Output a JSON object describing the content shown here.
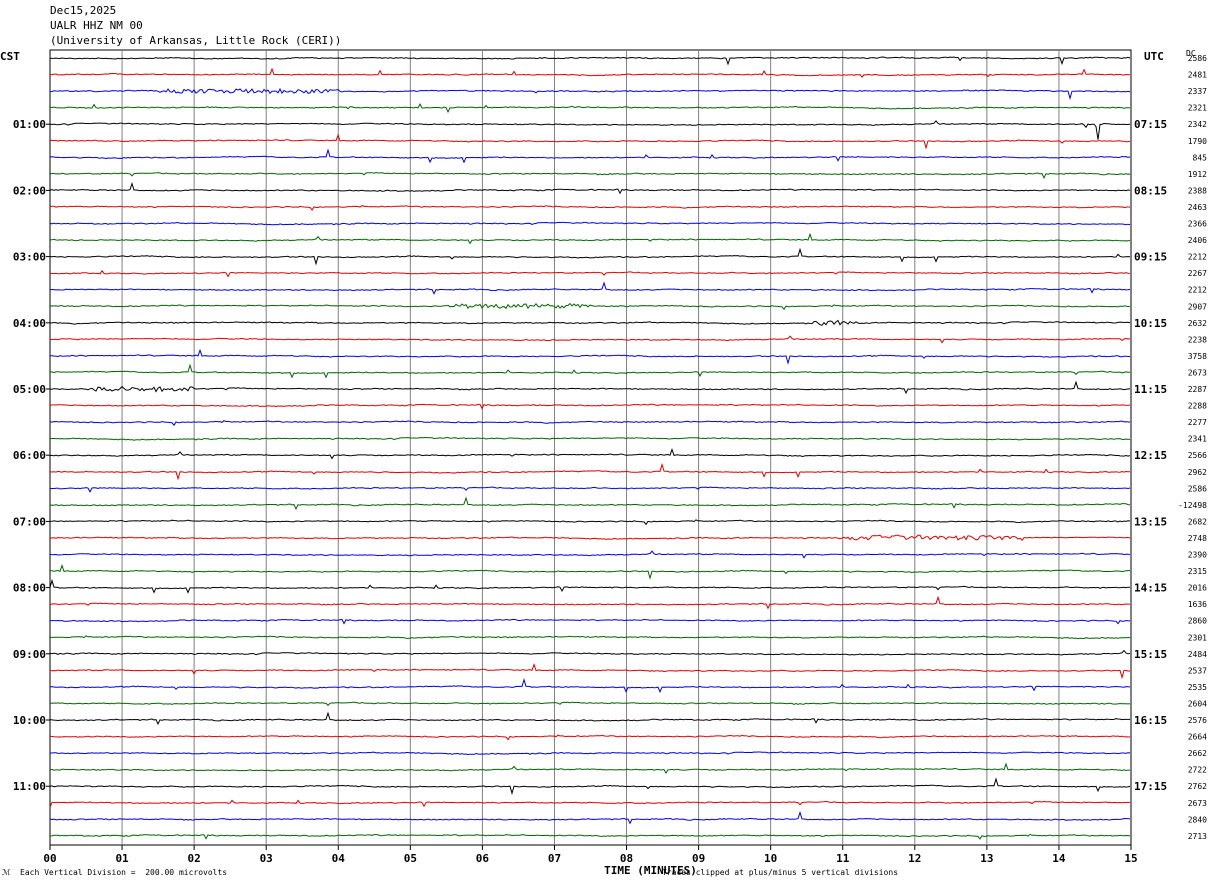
{
  "header": {
    "date": "Dec15,2025",
    "station": "UALR HHZ NM 00",
    "institution": "(University of Arkansas, Little Rock (CERI))"
  },
  "left_zone": "CST",
  "right_zone": "UTC",
  "dc_label": "DC",
  "footer": {
    "scale_note": "Each Vertical Division =  200.00 microvolts",
    "clip_note": "Traces clipped at plus/minus 5 vertical divisions",
    "mark": "ℳ"
  },
  "colors": {
    "trace_cycle": [
      "#000000",
      "#e00000",
      "#0000e0",
      "#006600"
    ],
    "grid": "#808080"
  },
  "chart_data": {
    "type": "line",
    "subtype": "helicorder",
    "xlabel": "TIME (MINUTES)",
    "x_ticks": [
      "00",
      "01",
      "02",
      "03",
      "04",
      "05",
      "06",
      "07",
      "08",
      "09",
      "10",
      "11",
      "12",
      "13",
      "14",
      "15"
    ],
    "xlim": [
      0,
      15
    ],
    "rows_per_hour": 4,
    "row_minutes": 15,
    "cst_labels": [
      "01:00",
      "02:00",
      "03:00",
      "04:00",
      "05:00",
      "06:00",
      "07:00",
      "08:00",
      "09:00",
      "10:00",
      "11:00"
    ],
    "utc_labels": [
      "07:15",
      "08:15",
      "09:15",
      "10:15",
      "11:15",
      "12:15",
      "13:15",
      "14:15",
      "15:15",
      "16:15",
      "17:15"
    ],
    "dc_offsets": [
      "2586",
      "2481",
      "2337",
      "2321",
      "2342",
      "1790",
      "845",
      "1912",
      "2388",
      "2463",
      "2366",
      "2406",
      "2212",
      "2267",
      "2212",
      "2907",
      "2632",
      "2238",
      "3758",
      "2673",
      "2287",
      "2288",
      "2277",
      "2341",
      "2566",
      "2962",
      "2586",
      "-12498",
      "2682",
      "2748",
      "2390",
      "2315",
      "2016",
      "1636",
      "2860",
      "2301",
      "2484",
      "2537",
      "2535",
      "2604",
      "2576",
      "2664",
      "2662",
      "2722",
      "2762",
      "2673",
      "2840",
      "2713"
    ],
    "events": [
      {
        "row": 2,
        "minute_start": 1.5,
        "minute_end": 4.0,
        "type": "burst"
      },
      {
        "row": 4,
        "minute_start": 14.3,
        "minute_end": 14.6,
        "type": "spike"
      },
      {
        "row": 15,
        "minute_start": 5.5,
        "minute_end": 7.5,
        "type": "burst"
      },
      {
        "row": 16,
        "minute_start": 10.6,
        "minute_end": 11.2,
        "type": "burst"
      },
      {
        "row": 20,
        "minute_start": 0.5,
        "minute_end": 2.0,
        "type": "burst"
      },
      {
        "row": 29,
        "minute_start": 11.0,
        "minute_end": 13.5,
        "type": "burst"
      }
    ]
  }
}
